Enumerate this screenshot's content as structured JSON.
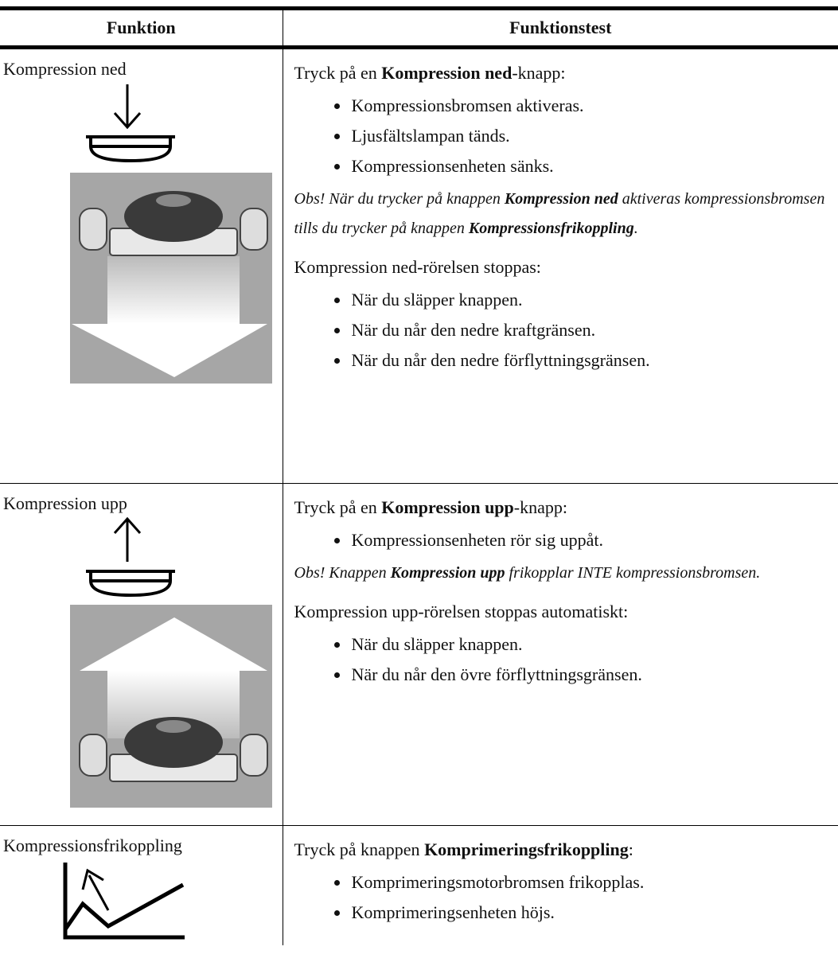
{
  "table": {
    "header": [
      "Funktion",
      "Funktionstest"
    ],
    "rows": [
      {
        "function": "Kompression ned",
        "test": [
          {
            "kind": "para",
            "parts": [
              {
                "t": "Tryck på en "
              },
              {
                "t": "Kompression ned",
                "b": true
              },
              {
                "t": "-knapp:"
              }
            ]
          },
          {
            "kind": "list",
            "items": [
              "Kompressionsbromsen aktiveras.",
              "Ljusfältslampan tänds.",
              "Kompressionsenheten sänks."
            ]
          },
          {
            "kind": "note",
            "parts": [
              {
                "t": "Obs! När du trycker på knappen "
              },
              {
                "t": "Kompression ned",
                "b": true
              },
              {
                "t": " aktiveras kompressionsbromsen tills du trycker på knappen "
              },
              {
                "t": "Kompressionsfrikoppling",
                "b": true
              },
              {
                "t": "."
              }
            ]
          },
          {
            "kind": "para",
            "parts": [
              {
                "t": "Kompression ned-rörelsen stoppas:"
              }
            ]
          },
          {
            "kind": "list",
            "items": [
              "När du släpper knappen.",
              "När du når den nedre kraftgränsen.",
              "När du når den nedre förflyttningsgränsen."
            ]
          }
        ]
      },
      {
        "function": "Kompression upp",
        "test": [
          {
            "kind": "para",
            "parts": [
              {
                "t": "Tryck på en "
              },
              {
                "t": "Kompression upp",
                "b": true
              },
              {
                "t": "-knapp:"
              }
            ]
          },
          {
            "kind": "list",
            "items": [
              "Kompressionsenheten rör sig uppåt."
            ]
          },
          {
            "kind": "note",
            "parts": [
              {
                "t": "Obs! Knappen "
              },
              {
                "t": "Kompression upp",
                "b": true
              },
              {
                "t": " frikopplar INTE kompressionsbromsen."
              }
            ]
          },
          {
            "kind": "para",
            "parts": [
              {
                "t": "Kompression upp-rörelsen stoppas automatiskt:"
              }
            ]
          },
          {
            "kind": "list",
            "items": [
              "När du släpper knappen.",
              "När du når den övre förflyttningsgränsen."
            ]
          }
        ]
      },
      {
        "function": "Kompressionsfrikoppling",
        "test": [
          {
            "kind": "para",
            "parts": [
              {
                "t": "Tryck på knappen "
              },
              {
                "t": "Komprimeringsfrikoppling",
                "b": true
              },
              {
                "t": ":"
              }
            ]
          },
          {
            "kind": "list",
            "items": [
              "Komprimeringsmotorbromsen frikopplas.",
              "Komprimeringsenheten höjs."
            ]
          }
        ]
      }
    ]
  }
}
